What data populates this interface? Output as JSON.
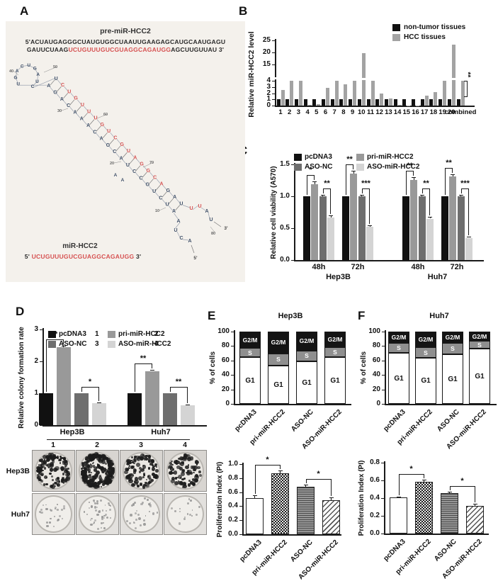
{
  "panels": {
    "A": {
      "label": "A",
      "title": "pre-miR-HCC2",
      "sequence": {
        "line1": "5'ACUAUGAGGGCUAUGUGGCUAAUUGAAGAGCAUGCAAUGAGU",
        "line2_pre": "GAUUCUAAG",
        "line2_red": "UCUGUUUGUCGUAGGCAGAUGG",
        "line2_post": "AGCUUGUUAU 3'"
      },
      "mir": {
        "label": "miR-HCC2",
        "prefix": "5'",
        "seq": "UCUGUUUGUCGUAGGCAGAUGG",
        "suffix": "3'"
      },
      "structure": {
        "loop_letters": "UGACUGAUC",
        "stem_upper": "UCUGUUUGUCGUAGGCAGAUGG",
        "stem_lower": "AGACAAACAGCAUCCGUCUACC",
        "upper_red_from": 1,
        "upper_red_to": 16,
        "tail_upper": "UUAU",
        "tail_lower": "AUCA",
        "bulge": "AA",
        "position_labels": [
          "40",
          "50",
          "30",
          "60",
          "20",
          "70",
          "10",
          "80"
        ],
        "end_3": "3'",
        "end_5": "5'",
        "color_red": "#d65252",
        "color_navy": "#3e4f68"
      }
    },
    "B": {
      "label": "B"
    },
    "C": {
      "label": "C"
    },
    "D": {
      "label": "D",
      "colony": {
        "row_labels": [
          "Hep3B",
          "Huh7"
        ],
        "col_labels": [
          "1",
          "2",
          "3",
          "4"
        ],
        "densities": [
          [
            130,
            260,
            115,
            85
          ],
          [
            26,
            42,
            30,
            16
          ]
        ]
      }
    },
    "E": {
      "label": "E",
      "title": "Hep3B"
    },
    "F": {
      "label": "F",
      "title": "Huh7"
    }
  },
  "chart_data": [
    {
      "id": "B",
      "panel": "B",
      "type": "bar",
      "ylabel": "Relative miR-HCC2 level",
      "categories": [
        "1",
        "2",
        "3",
        "4",
        "5",
        "6",
        "7",
        "8",
        "9",
        "10",
        "11",
        "12",
        "13",
        "14",
        "15",
        "16",
        "17",
        "18",
        "19",
        "20",
        "combined"
      ],
      "axis_break": {
        "lower_ticks": [
          0,
          1,
          2,
          3,
          4
        ],
        "upper_ticks": [
          15,
          20,
          25
        ]
      },
      "series": [
        {
          "name": "non-tumor tissues",
          "color": "#111111",
          "values": [
            1,
            1,
            1,
            1,
            1,
            1,
            1,
            1,
            1,
            1,
            1,
            1,
            1,
            1,
            1,
            1,
            1,
            1,
            1,
            1,
            1
          ]
        },
        {
          "name": "HCC tissues",
          "color": "#a3a3a3",
          "values": [
            2.5,
            4,
            4,
            0.15,
            0.2,
            2.9,
            4,
            3.4,
            4,
            19.8,
            4,
            1.9,
            1.15,
            0.15,
            0.05,
            0.05,
            1.6,
            2.2,
            4,
            23.3,
            4
          ]
        }
      ],
      "sig": {
        "category": "combined",
        "stars": "**"
      }
    },
    {
      "id": "C",
      "panel": "C",
      "type": "grouped-bar",
      "ylabel": "Relative cell viability (A570)",
      "ylim": [
        0,
        1.5
      ],
      "yticks": [
        0,
        0.5,
        1,
        1.5
      ],
      "groups": [
        "48h",
        "72h",
        "48h",
        "72h"
      ],
      "super_groups": [
        {
          "name": "Hep3B",
          "span": [
            0,
            1
          ]
        },
        {
          "name": "Huh7",
          "span": [
            2,
            3
          ]
        }
      ],
      "series": [
        {
          "name": "pcDNA3",
          "color": "#111111",
          "values": [
            1,
            1,
            1,
            1
          ],
          "err": [
            0,
            0,
            0,
            0
          ]
        },
        {
          "name": "pri-miR-HCC2",
          "color": "#999999",
          "values": [
            1.19,
            1.36,
            1.26,
            1.31
          ],
          "err": [
            0.04,
            0.04,
            0.04,
            0.03
          ]
        },
        {
          "name": "ASO-NC",
          "color": "#6e6e6e",
          "values": [
            1,
            1,
            1,
            1
          ],
          "err": [
            0.02,
            0.02,
            0.02,
            0.02
          ]
        },
        {
          "name": "ASO-miR-HCC2",
          "color": "#d4d4d4",
          "values": [
            0.67,
            0.52,
            0.65,
            0.35
          ],
          "err": [
            0.03,
            0.02,
            0.03,
            0.02
          ]
        }
      ],
      "sig": [
        [
          "*",
          "**"
        ],
        [
          "**",
          "***"
        ],
        [
          "**",
          "**"
        ],
        [
          "**",
          "***"
        ]
      ],
      "legend_grid": [
        [
          "pcDNA3",
          "pri-miR-HCC2"
        ],
        [
          "ASO-NC",
          "ASO-miR-HCC2"
        ]
      ]
    },
    {
      "id": "D",
      "panel": "D",
      "type": "grouped-bar",
      "ylabel": "Relative colony formation rate",
      "ylim": [
        0,
        3
      ],
      "yticks": [
        0,
        1,
        2,
        3
      ],
      "groups": [
        "Hep3B",
        "Huh7"
      ],
      "series": [
        {
          "name": "pcDNA3",
          "color": "#111111",
          "values": [
            1,
            1
          ],
          "err": [
            0,
            0
          ]
        },
        {
          "name": "pri-miR-HCC2",
          "color": "#999999",
          "values": [
            2.45,
            1.7
          ],
          "err": [
            0.05,
            0.04
          ]
        },
        {
          "name": "ASO-NC",
          "color": "#6e6e6e",
          "values": [
            1,
            1
          ],
          "err": [
            0,
            0
          ]
        },
        {
          "name": "ASO-miR-HCC2",
          "color": "#d4d4d4",
          "values": [
            0.68,
            0.62
          ],
          "err": [
            0.03,
            0.03
          ]
        }
      ],
      "sig": [
        [
          "**",
          "*"
        ],
        [
          "**",
          "**"
        ]
      ],
      "legend_grid": [
        [
          "pcDNA3",
          "pri-miR-HCC2"
        ],
        [
          "ASO-NC",
          "ASO-miR-HCC2"
        ]
      ],
      "legend_numbers": [
        [
          "1",
          "2"
        ],
        [
          "3",
          "4"
        ]
      ]
    },
    {
      "id": "E_cycle",
      "panel": "E",
      "type": "stacked-bar",
      "title": "Hep3B",
      "ylabel": "% of cells",
      "ylim": [
        0,
        100
      ],
      "yticks": [
        0,
        20,
        40,
        60,
        80,
        100
      ],
      "categories": [
        "pcDNA3",
        "pri-miR-HCC2",
        "ASO-NC",
        "ASO-miR-HCC2"
      ],
      "phases": [
        {
          "name": "G1",
          "color": "#ffffff",
          "text": "#111111"
        },
        {
          "name": "S",
          "color": "#8f8f8f",
          "text": "#ffffff"
        },
        {
          "name": "G2/M",
          "color": "#141414",
          "text": "#ffffff"
        }
      ],
      "values": {
        "G1": [
          65,
          53,
          59,
          65
        ],
        "S": [
          12,
          17,
          15,
          13
        ],
        "G2/M": [
          23,
          30,
          26,
          22
        ]
      }
    },
    {
      "id": "F_cycle",
      "panel": "F",
      "type": "stacked-bar",
      "title": "Huh7",
      "ylabel": "% of cells",
      "ylim": [
        0,
        100
      ],
      "yticks": [
        0,
        20,
        40,
        60,
        80,
        100
      ],
      "categories": [
        "pcDNA3",
        "pri-miR-HCC2",
        "ASO-NC",
        "ASO-miR-HCC2"
      ],
      "phases": [
        {
          "name": "G1",
          "color": "#ffffff",
          "text": "#111111"
        },
        {
          "name": "S",
          "color": "#8f8f8f",
          "text": "#ffffff"
        },
        {
          "name": "G2/M",
          "color": "#141414",
          "text": "#ffffff"
        }
      ],
      "values": {
        "G1": [
          71,
          64,
          69,
          76
        ],
        "S": [
          13,
          14,
          15,
          11
        ],
        "G2/M": [
          16,
          22,
          16,
          13
        ]
      }
    },
    {
      "id": "E_pi",
      "panel": "E",
      "type": "bar-pattern",
      "ylabel": "Proliferation Index (PI)",
      "ylim": [
        0,
        1.0
      ],
      "yticks": [
        0,
        0.2,
        0.4,
        0.6,
        0.8,
        1.0
      ],
      "categories": [
        "pcDNA3",
        "pri-miR-HCC2",
        "ASO-NC",
        "ASO-miR-HCC2"
      ],
      "values": [
        0.52,
        0.87,
        0.68,
        0.48
      ],
      "err": [
        0.04,
        0.04,
        0.03,
        0.05
      ],
      "patterns": [
        "white",
        "checker",
        "hlines",
        "diag"
      ],
      "sig": [
        {
          "a": 0,
          "b": 1,
          "stars": "*"
        },
        {
          "a": 2,
          "b": 3,
          "stars": "*"
        }
      ]
    },
    {
      "id": "F_pi",
      "panel": "F",
      "type": "bar-pattern",
      "ylabel": "Proliferation Index (PI)",
      "ylim": [
        0,
        0.8
      ],
      "yticks": [
        0,
        0.2,
        0.4,
        0.6,
        0.8
      ],
      "categories": [
        "pcDNA3",
        "pri-miR-HCC2",
        "ASO-NC",
        "ASO-miR-HCC2"
      ],
      "values": [
        0.41,
        0.585,
        0.46,
        0.315
      ],
      "err": [
        0.01,
        0.02,
        0.015,
        0.02
      ],
      "patterns": [
        "white",
        "checker",
        "hlines",
        "diag"
      ],
      "sig": [
        {
          "a": 0,
          "b": 1,
          "stars": "*"
        },
        {
          "a": 2,
          "b": 3,
          "stars": "*"
        }
      ]
    }
  ]
}
